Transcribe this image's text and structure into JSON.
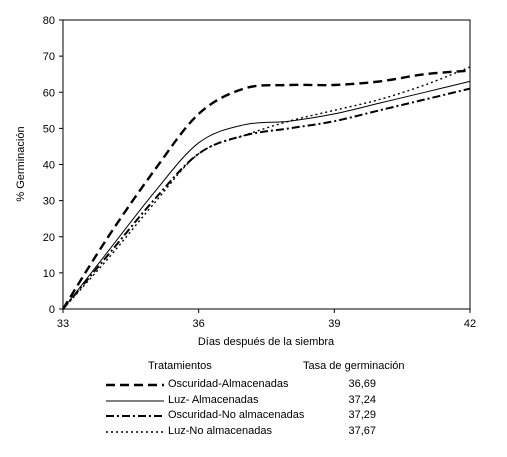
{
  "chart_data": {
    "type": "line",
    "xlabel": "Días después de la siembra",
    "ylabel": "% Germinación",
    "xlim": [
      33,
      42
    ],
    "ylim": [
      0,
      80
    ],
    "xticks": [
      33,
      36,
      39,
      42
    ],
    "yticks": [
      0,
      10,
      20,
      30,
      40,
      50,
      60,
      70,
      80
    ],
    "grid": false,
    "series": [
      {
        "name": "Oscuridad-Almacenadas",
        "style": "dashed",
        "x": [
          33,
          34,
          35,
          36,
          37,
          38,
          39,
          40,
          41,
          42
        ],
        "values": [
          0,
          20,
          38,
          54,
          61,
          62,
          62,
          63,
          65,
          66
        ]
      },
      {
        "name": "Luz- Almacenadas",
        "style": "solid",
        "x": [
          33,
          34,
          35,
          36,
          37,
          38,
          39,
          40,
          41,
          42
        ],
        "values": [
          0,
          16,
          32,
          46,
          51,
          52,
          54,
          57,
          60,
          63
        ]
      },
      {
        "name": "Oscuridad-No almacenadas",
        "style": "dashdot",
        "x": [
          33,
          34,
          35,
          36,
          37,
          38,
          39,
          40,
          41,
          42
        ],
        "values": [
          0,
          15,
          30,
          43,
          48,
          50,
          52,
          55,
          58,
          61
        ]
      },
      {
        "name": "Luz-No almacenadas",
        "style": "dotted",
        "x": [
          33,
          34,
          35,
          36,
          37,
          38,
          39,
          40,
          41,
          42
        ],
        "values": [
          0,
          14,
          29,
          43,
          48,
          52,
          55,
          58,
          62,
          67
        ]
      }
    ]
  },
  "legend": {
    "header_treatments": "Tratamientos",
    "header_rate": "Tasa de germinación",
    "rows": [
      {
        "label": "Oscuridad-Almacenadas",
        "rate": "36,69"
      },
      {
        "label": "Luz- Almacenadas",
        "rate": "37,24"
      },
      {
        "label": "Oscuridad-No almacenadas",
        "rate": "37,29"
      },
      {
        "label": "Luz-No almacenadas",
        "rate": "37,67"
      }
    ]
  }
}
